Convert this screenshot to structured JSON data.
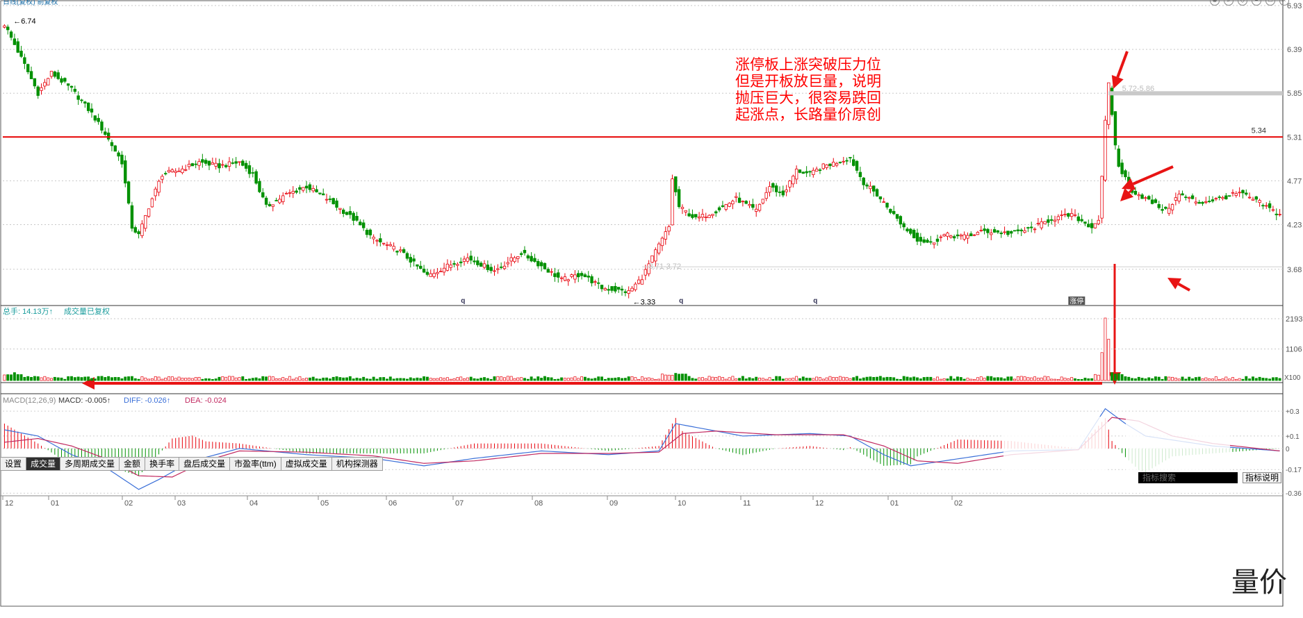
{
  "title": "日线(复权) 前复权",
  "annotation": {
    "lines": [
      "涨停板上涨突破压力位",
      "但是开板放巨量，说明",
      "抛压巨大，很容易跌回",
      "起涨点，长路量价原创"
    ],
    "color": "#ff0000"
  },
  "price_labels": {
    "high": "6.74",
    "low": "3.33",
    "resistance": "5.34",
    "zone_top": "5.72-5.86",
    "zone_bottom": "3.71-3.72",
    "limit_badge": "涨停"
  },
  "volume_header": {
    "total": "总手: 14.13万",
    "restore": "成交量已复权"
  },
  "tabs": [
    "设置",
    "成交量",
    "多周期成交量",
    "金额",
    "换手率",
    "盘后成交量",
    "市盈率(ttm)",
    "虚拟成交量",
    "机构探测器"
  ],
  "active_tab": 1,
  "macd_header": {
    "name": "MACD(12,26,9)",
    "macd": "MACD: -0.005",
    "diff": "DIFF: -0.026",
    "dea": "DEA: -0.024"
  },
  "indicator_search_placeholder": "指标搜索",
  "indicator_help": "指标说明",
  "watermark": "量价",
  "colors": {
    "up": "#e8000a",
    "down": "#009100",
    "resistance": "#e60000",
    "diff": "#3a6fd8",
    "dea": "#c1285f"
  },
  "chart_data": [
    {
      "type": "candlestick",
      "title": "",
      "xlabel": "",
      "ylabel": "",
      "x_ticks": [
        "12",
        "01",
        "02",
        "03",
        "04",
        "05",
        "06",
        "07",
        "08",
        "09",
        "10",
        "11",
        "12",
        "01",
        "02"
      ],
      "y_ticks": [
        6.93,
        6.39,
        5.85,
        5.31,
        4.77,
        4.23,
        3.68
      ],
      "ylim": [
        3.25,
        6.93
      ],
      "close_path": [
        [
          0,
          6.7
        ],
        [
          6,
          6.2
        ],
        [
          10,
          5.85
        ],
        [
          14,
          6.1
        ],
        [
          20,
          5.9
        ],
        [
          26,
          5.6
        ],
        [
          30,
          5.35
        ],
        [
          35,
          5.0
        ],
        [
          38,
          4.2
        ],
        [
          40,
          4.1
        ],
        [
          43,
          4.45
        ],
        [
          47,
          4.85
        ],
        [
          52,
          4.9
        ],
        [
          58,
          5.0
        ],
        [
          64,
          4.95
        ],
        [
          70,
          5.0
        ],
        [
          74,
          4.85
        ],
        [
          78,
          4.45
        ],
        [
          84,
          4.6
        ],
        [
          90,
          4.7
        ],
        [
          96,
          4.55
        ],
        [
          104,
          4.3
        ],
        [
          110,
          4.05
        ],
        [
          118,
          3.9
        ],
        [
          126,
          3.6
        ],
        [
          132,
          3.72
        ],
        [
          138,
          3.82
        ],
        [
          146,
          3.66
        ],
        [
          154,
          3.88
        ],
        [
          160,
          3.72
        ],
        [
          166,
          3.55
        ],
        [
          172,
          3.62
        ],
        [
          178,
          3.45
        ],
        [
          186,
          3.4
        ],
        [
          190,
          3.58
        ],
        [
          194,
          3.9
        ],
        [
          198,
          4.2
        ],
        [
          199,
          4.8
        ],
        [
          201,
          4.45
        ],
        [
          206,
          4.3
        ],
        [
          212,
          4.4
        ],
        [
          218,
          4.55
        ],
        [
          224,
          4.4
        ],
        [
          228,
          4.7
        ],
        [
          232,
          4.6
        ],
        [
          236,
          4.9
        ],
        [
          240,
          4.85
        ],
        [
          244,
          4.95
        ],
        [
          248,
          5.0
        ],
        [
          252,
          5.05
        ],
        [
          256,
          4.75
        ],
        [
          260,
          4.6
        ],
        [
          264,
          4.4
        ],
        [
          268,
          4.2
        ],
        [
          272,
          4.05
        ],
        [
          276,
          4.0
        ],
        [
          280,
          4.1
        ],
        [
          286,
          4.08
        ],
        [
          292,
          4.15
        ],
        [
          300,
          4.12
        ],
        [
          306,
          4.18
        ],
        [
          312,
          4.3
        ],
        [
          318,
          4.35
        ],
        [
          324,
          4.2
        ],
        [
          326,
          4.3
        ],
        [
          327,
          4.8
        ],
        [
          328,
          5.5
        ],
        [
          329,
          5.95
        ],
        [
          330,
          5.6
        ],
        [
          331,
          5.2
        ],
        [
          332,
          4.95
        ],
        [
          334,
          4.8
        ],
        [
          336,
          4.65
        ],
        [
          340,
          4.55
        ],
        [
          346,
          4.4
        ],
        [
          350,
          4.6
        ],
        [
          356,
          4.5
        ],
        [
          362,
          4.55
        ],
        [
          368,
          4.62
        ],
        [
          374,
          4.5
        ],
        [
          380,
          4.35
        ]
      ]
    },
    {
      "type": "bar",
      "title": "",
      "y_ticks": [
        "2193",
        "1106"
      ],
      "y_unit": "X100",
      "peak_index": 328,
      "peak_value": 2193
    },
    {
      "type": "line",
      "title": "",
      "series": [
        {
          "name": "DIFF",
          "path": [
            [
              0,
              0.15
            ],
            [
              10,
              0.1
            ],
            [
              20,
              -0.05
            ],
            [
              30,
              -0.15
            ],
            [
              40,
              -0.33
            ],
            [
              46,
              -0.25
            ],
            [
              56,
              -0.1
            ],
            [
              70,
              0.0
            ],
            [
              90,
              -0.05
            ],
            [
              110,
              -0.08
            ],
            [
              125,
              -0.14
            ],
            [
              140,
              -0.08
            ],
            [
              160,
              -0.02
            ],
            [
              180,
              -0.05
            ],
            [
              195,
              -0.02
            ],
            [
              200,
              0.2
            ],
            [
              204,
              0.18
            ],
            [
              220,
              0.1
            ],
            [
              240,
              0.12
            ],
            [
              252,
              0.1
            ],
            [
              262,
              -0.05
            ],
            [
              270,
              -0.14
            ],
            [
              280,
              -0.1
            ],
            [
              300,
              -0.02
            ],
            [
              320,
              -0.01
            ],
            [
              328,
              0.32
            ],
            [
              334,
              0.2
            ],
            [
              340,
              0.1
            ],
            [
              360,
              0.02
            ],
            [
              380,
              -0.02
            ]
          ]
        },
        {
          "name": "DEA",
          "path": [
            [
              0,
              0.05
            ],
            [
              10,
              0.08
            ],
            [
              20,
              0.02
            ],
            [
              30,
              -0.08
            ],
            [
              40,
              -0.22
            ],
            [
              50,
              -0.23
            ],
            [
              60,
              -0.1
            ],
            [
              70,
              -0.02
            ],
            [
              90,
              -0.03
            ],
            [
              110,
              -0.06
            ],
            [
              125,
              -0.12
            ],
            [
              140,
              -0.1
            ],
            [
              160,
              -0.04
            ],
            [
              180,
              -0.04
            ],
            [
              195,
              -0.03
            ],
            [
              202,
              0.12
            ],
            [
              212,
              0.14
            ],
            [
              230,
              0.11
            ],
            [
              250,
              0.11
            ],
            [
              262,
              0.02
            ],
            [
              272,
              -0.1
            ],
            [
              284,
              -0.12
            ],
            [
              300,
              -0.05
            ],
            [
              320,
              -0.01
            ],
            [
              330,
              0.25
            ],
            [
              338,
              0.22
            ],
            [
              348,
              0.1
            ],
            [
              360,
              0.04
            ],
            [
              380,
              -0.02
            ]
          ]
        }
      ],
      "y_ticks": [
        "+0.3",
        "+0.1",
        "0",
        "-0.17",
        "-0.36"
      ]
    }
  ]
}
